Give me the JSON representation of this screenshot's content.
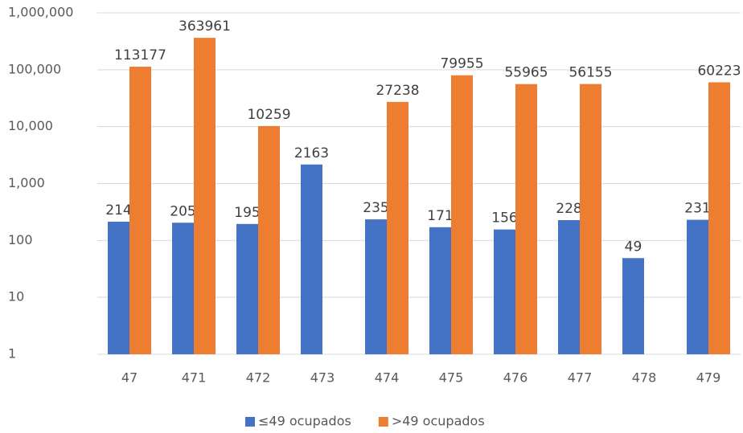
{
  "chart_data": {
    "type": "bar",
    "categories": [
      "47",
      "471",
      "472",
      "473",
      "474",
      "475",
      "476",
      "477",
      "478",
      "479"
    ],
    "series": [
      {
        "name": "≤49 ocupados",
        "color": "#4472c4",
        "values": [
          214,
          205,
          195,
          2163,
          235,
          171,
          156,
          228,
          49,
          231
        ]
      },
      {
        "name": ">49 ocupados",
        "color": "#ed7d31",
        "values": [
          113177,
          363961,
          10259,
          null,
          27238,
          79955,
          55965,
          56155,
          null,
          60223
        ]
      }
    ],
    "ylim": [
      1,
      1000000
    ],
    "log_scale": true,
    "yticks": [
      1,
      10,
      100,
      {
        "value": 1000,
        "label": "1,000"
      },
      {
        "value": 10000,
        "label": "10,000"
      },
      {
        "value": 100000,
        "label": "100,000"
      },
      {
        "value": 1000000,
        "label": "1,000,000"
      }
    ],
    "grid": true,
    "legend": "bottom"
  }
}
